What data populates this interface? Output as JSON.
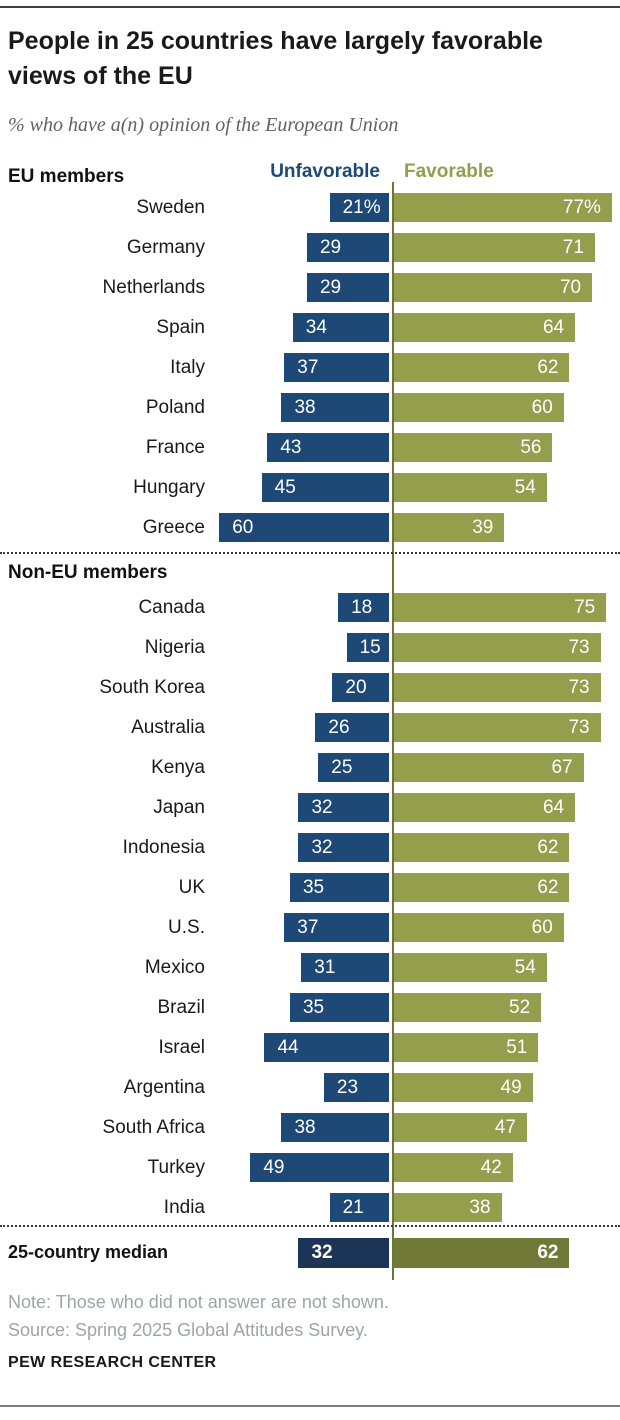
{
  "header": {
    "title": "People in 25 countries have largely favorable views of the EU",
    "subtitle": "% who have a(n) opinion of the European Union"
  },
  "legend": {
    "unfavorable": "Unfavorable",
    "favorable": "Favorable"
  },
  "colors": {
    "unfavorable_bar": "#1E4976",
    "favorable_bar": "#949E4D",
    "median_unfavorable_bar": "#1C3557",
    "median_favorable_bar": "#707936",
    "axis_line": "#6E7633"
  },
  "chart_data": {
    "type": "bar",
    "orientation": "horizontal-diverging",
    "series_names": [
      "Unfavorable",
      "Favorable"
    ],
    "axis": {
      "center_value": 0,
      "unit": "%",
      "max_unfavorable": 60,
      "max_favorable": 77
    },
    "groups": [
      {
        "label": "EU members",
        "rows": [
          {
            "country": "Sweden",
            "unfavorable": 21,
            "favorable": 77,
            "unfavorable_text": "21%",
            "favorable_text": "77%"
          },
          {
            "country": "Germany",
            "unfavorable": 29,
            "favorable": 71,
            "unfavorable_text": "29",
            "favorable_text": "71"
          },
          {
            "country": "Netherlands",
            "unfavorable": 29,
            "favorable": 70,
            "unfavorable_text": "29",
            "favorable_text": "70"
          },
          {
            "country": "Spain",
            "unfavorable": 34,
            "favorable": 64,
            "unfavorable_text": "34",
            "favorable_text": "64"
          },
          {
            "country": "Italy",
            "unfavorable": 37,
            "favorable": 62,
            "unfavorable_text": "37",
            "favorable_text": "62"
          },
          {
            "country": "Poland",
            "unfavorable": 38,
            "favorable": 60,
            "unfavorable_text": "38",
            "favorable_text": "60"
          },
          {
            "country": "France",
            "unfavorable": 43,
            "favorable": 56,
            "unfavorable_text": "43",
            "favorable_text": "56"
          },
          {
            "country": "Hungary",
            "unfavorable": 45,
            "favorable": 54,
            "unfavorable_text": "45",
            "favorable_text": "54"
          },
          {
            "country": "Greece",
            "unfavorable": 60,
            "favorable": 39,
            "unfavorable_text": "60",
            "favorable_text": "39"
          }
        ]
      },
      {
        "label": "Non-EU members",
        "rows": [
          {
            "country": "Canada",
            "unfavorable": 18,
            "favorable": 75,
            "unfavorable_text": "18",
            "favorable_text": "75"
          },
          {
            "country": "Nigeria",
            "unfavorable": 15,
            "favorable": 73,
            "unfavorable_text": "15",
            "favorable_text": "73"
          },
          {
            "country": "South Korea",
            "unfavorable": 20,
            "favorable": 73,
            "unfavorable_text": "20",
            "favorable_text": "73"
          },
          {
            "country": "Australia",
            "unfavorable": 26,
            "favorable": 73,
            "unfavorable_text": "26",
            "favorable_text": "73"
          },
          {
            "country": "Kenya",
            "unfavorable": 25,
            "favorable": 67,
            "unfavorable_text": "25",
            "favorable_text": "67"
          },
          {
            "country": "Japan",
            "unfavorable": 32,
            "favorable": 64,
            "unfavorable_text": "32",
            "favorable_text": "64"
          },
          {
            "country": "Indonesia",
            "unfavorable": 32,
            "favorable": 62,
            "unfavorable_text": "32",
            "favorable_text": "62"
          },
          {
            "country": "UK",
            "unfavorable": 35,
            "favorable": 62,
            "unfavorable_text": "35",
            "favorable_text": "62"
          },
          {
            "country": "U.S.",
            "unfavorable": 37,
            "favorable": 60,
            "unfavorable_text": "37",
            "favorable_text": "60"
          },
          {
            "country": "Mexico",
            "unfavorable": 31,
            "favorable": 54,
            "unfavorable_text": "31",
            "favorable_text": "54"
          },
          {
            "country": "Brazil",
            "unfavorable": 35,
            "favorable": 52,
            "unfavorable_text": "35",
            "favorable_text": "52"
          },
          {
            "country": "Israel",
            "unfavorable": 44,
            "favorable": 51,
            "unfavorable_text": "44",
            "favorable_text": "51"
          },
          {
            "country": "Argentina",
            "unfavorable": 23,
            "favorable": 49,
            "unfavorable_text": "23",
            "favorable_text": "49"
          },
          {
            "country": "South Africa",
            "unfavorable": 38,
            "favorable": 47,
            "unfavorable_text": "38",
            "favorable_text": "47"
          },
          {
            "country": "Turkey",
            "unfavorable": 49,
            "favorable": 42,
            "unfavorable_text": "49",
            "favorable_text": "42"
          },
          {
            "country": "India",
            "unfavorable": 21,
            "favorable": 38,
            "unfavorable_text": "21",
            "favorable_text": "38"
          }
        ]
      }
    ],
    "median": {
      "label": "25-country median",
      "unfavorable": 32,
      "favorable": 62,
      "unfavorable_text": "32",
      "favorable_text": "62"
    }
  },
  "footer": {
    "note": "Note: Those who did not answer are not shown.",
    "source": "Source: Spring 2025 Global Attitudes Survey.",
    "brand": "PEW RESEARCH CENTER"
  }
}
